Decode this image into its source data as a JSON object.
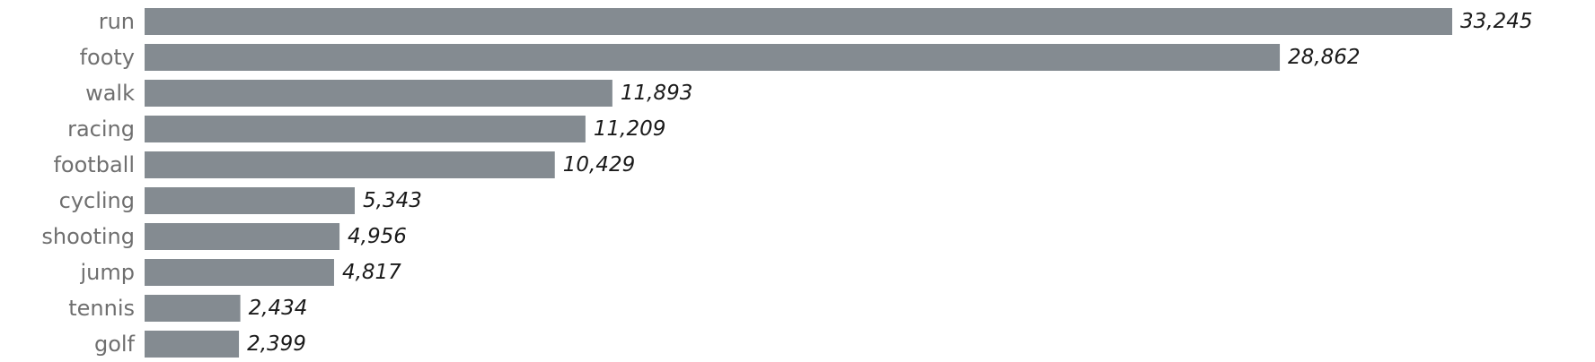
{
  "chart_data": {
    "type": "bar",
    "orientation": "horizontal",
    "categories": [
      "run",
      "footy",
      "walk",
      "racing",
      "football",
      "cycling",
      "shooting",
      "jump",
      "tennis",
      "golf"
    ],
    "values": [
      33245,
      28862,
      11893,
      11209,
      10429,
      5343,
      4956,
      4817,
      2434,
      2399
    ],
    "value_labels": [
      "33,245",
      "28,862",
      "11,893",
      "11,209",
      "10,429",
      "5,343",
      "4,956",
      "4,817",
      "2,434",
      "2,399"
    ],
    "xlim": [
      0,
      33245
    ],
    "grid": false,
    "legend": "none",
    "title": "",
    "xlabel": "",
    "ylabel": ""
  },
  "colors": {
    "bar": "#848b91",
    "category_text": "#6f6f6f",
    "value_text": "#1a1a1a",
    "baseline": "#dddddd",
    "background": "#ffffff"
  }
}
